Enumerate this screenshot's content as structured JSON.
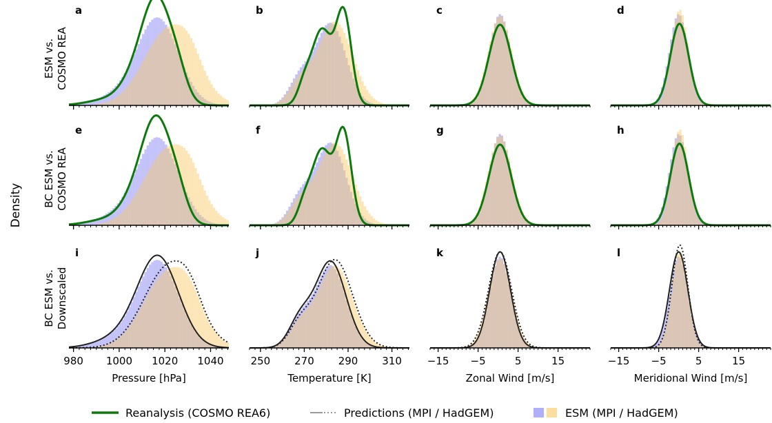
{
  "figure": {
    "ylabel": "Density",
    "row_labels": [
      [
        "ESM vs.",
        "COSMO REA"
      ],
      [
        "BC ESM vs.",
        "COSMO REA"
      ],
      [
        "BC ESM vs.",
        "Downscaled"
      ]
    ],
    "legend": {
      "reanalysis": "Reanalysis (COSMO REA6)",
      "predictions": "Predictions (MPI / HadGEM)",
      "esm": "ESM (MPI / HadGEM)"
    }
  },
  "colors": {
    "reanalysis": "#0b7a0b",
    "esm_mpi": "#7b7bf5",
    "esm_hadgem": "#f8c860",
    "prediction": "#222222",
    "axis": "#000000"
  },
  "chart_data": [
    {
      "type": "area",
      "panel": "a",
      "row": 0,
      "variable": "pressure",
      "xlabel": "Pressure [hPa]",
      "xlim": [
        978,
        1048
      ],
      "ticks": [
        980,
        1000,
        1020,
        1040
      ],
      "tick_labels": [
        "980",
        "1000",
        "1020",
        "1040"
      ],
      "comparison": "reanalysis",
      "mpi_peak": 1018,
      "hadgem_peak": 1022,
      "reanalysis_peak": 1018
    },
    {
      "type": "area",
      "panel": "b",
      "row": 0,
      "variable": "temperature",
      "xlabel": "Temperature [K]",
      "xlim": [
        245,
        318
      ],
      "ticks": [
        250,
        270,
        290,
        310
      ],
      "tick_labels": [
        "250",
        "270",
        "290",
        "310"
      ],
      "comparison": "reanalysis",
      "mpi_peak": 283,
      "hadgem_peak": 284,
      "reanalysis_peak": 287
    },
    {
      "type": "area",
      "panel": "c",
      "row": 0,
      "variable": "zonal_wind",
      "xlabel": "Zonal Wind [m/s]",
      "xlim": [
        -17,
        23
      ],
      "ticks": [
        -15,
        -5,
        5,
        15
      ],
      "tick_labels": [
        "−15",
        "−5",
        "5",
        "15"
      ],
      "comparison": "reanalysis",
      "mpi_peak": 0.5,
      "hadgem_peak": 0.5,
      "reanalysis_peak": 0.5
    },
    {
      "type": "area",
      "panel": "d",
      "row": 0,
      "variable": "meridional_wind",
      "xlabel": "Meridional Wind [m/s]",
      "xlim": [
        -17,
        23
      ],
      "ticks": [
        -15,
        -5,
        5,
        15
      ],
      "tick_labels": [
        "−15",
        "−5",
        "5",
        "15"
      ],
      "comparison": "reanalysis",
      "mpi_peak": 0,
      "hadgem_peak": 0.3,
      "reanalysis_peak": 0.2
    },
    {
      "type": "area",
      "panel": "e",
      "row": 1,
      "variable": "pressure",
      "xlabel": "Pressure [hPa]",
      "xlim": [
        978,
        1048
      ],
      "ticks": [
        980,
        1000,
        1020,
        1040
      ],
      "tick_labels": [
        "980",
        "1000",
        "1020",
        "1040"
      ],
      "comparison": "reanalysis",
      "mpi_peak": 1017,
      "hadgem_peak": 1018,
      "reanalysis_peak": 1018
    },
    {
      "type": "area",
      "panel": "f",
      "row": 1,
      "variable": "temperature",
      "xlabel": "Temperature [K]",
      "xlim": [
        245,
        318
      ],
      "ticks": [
        250,
        270,
        290,
        310
      ],
      "tick_labels": [
        "250",
        "270",
        "290",
        "310"
      ],
      "comparison": "reanalysis",
      "mpi_peak": 283,
      "hadgem_peak": 284,
      "reanalysis_peak": 287
    },
    {
      "type": "area",
      "panel": "g",
      "row": 1,
      "variable": "zonal_wind",
      "xlabel": "Zonal Wind [m/s]",
      "xlim": [
        -17,
        23
      ],
      "ticks": [
        -15,
        -5,
        5,
        15
      ],
      "tick_labels": [
        "−15",
        "−5",
        "5",
        "15"
      ],
      "comparison": "reanalysis",
      "mpi_peak": 0.4,
      "hadgem_peak": 0.4,
      "reanalysis_peak": 0.5
    },
    {
      "type": "area",
      "panel": "h",
      "row": 1,
      "variable": "meridional_wind",
      "xlabel": "Meridional Wind [m/s]",
      "xlim": [
        -17,
        23
      ],
      "ticks": [
        -15,
        -5,
        5,
        15
      ],
      "tick_labels": [
        "−15",
        "−5",
        "5",
        "15"
      ],
      "comparison": "reanalysis",
      "mpi_peak": -0.5,
      "hadgem_peak": 0.2,
      "reanalysis_peak": 0.3
    },
    {
      "type": "area",
      "panel": "i",
      "row": 2,
      "variable": "pressure",
      "xlabel": "Pressure [hPa]",
      "xlim": [
        978,
        1048
      ],
      "ticks": [
        980,
        1000,
        1020,
        1040
      ],
      "tick_labels": [
        "980",
        "1000",
        "1020",
        "1040"
      ],
      "comparison": "predictions",
      "mpi_peak": 1018,
      "hadgem_peak": 1018,
      "reanalysis_peak": 1018
    },
    {
      "type": "area",
      "panel": "j",
      "row": 2,
      "variable": "temperature",
      "xlabel": "Temperature [K]",
      "xlim": [
        245,
        318
      ],
      "ticks": [
        250,
        270,
        290,
        310
      ],
      "tick_labels": [
        "250",
        "270",
        "290",
        "310"
      ],
      "comparison": "predictions",
      "mpi_peak": 283,
      "hadgem_peak": 284,
      "reanalysis_peak": 283
    },
    {
      "type": "area",
      "panel": "k",
      "row": 2,
      "variable": "zonal_wind",
      "xlabel": "Zonal Wind [m/s]",
      "xlim": [
        -17,
        23
      ],
      "ticks": [
        -15,
        -5,
        5,
        15
      ],
      "tick_labels": [
        "−15",
        "−5",
        "5",
        "15"
      ],
      "comparison": "predictions",
      "mpi_peak": 0.3,
      "hadgem_peak": 0.3,
      "reanalysis_peak": 0.3
    },
    {
      "type": "area",
      "panel": "l",
      "row": 2,
      "variable": "meridional_wind",
      "xlabel": "Meridional Wind [m/s]",
      "xlim": [
        -17,
        23
      ],
      "ticks": [
        -15,
        -5,
        5,
        15
      ],
      "tick_labels": [
        "−15",
        "−5",
        "5",
        "15"
      ],
      "comparison": "predictions",
      "mpi_peak": -0.3,
      "hadgem_peak": 0.2,
      "reanalysis_peak": 0
    }
  ]
}
